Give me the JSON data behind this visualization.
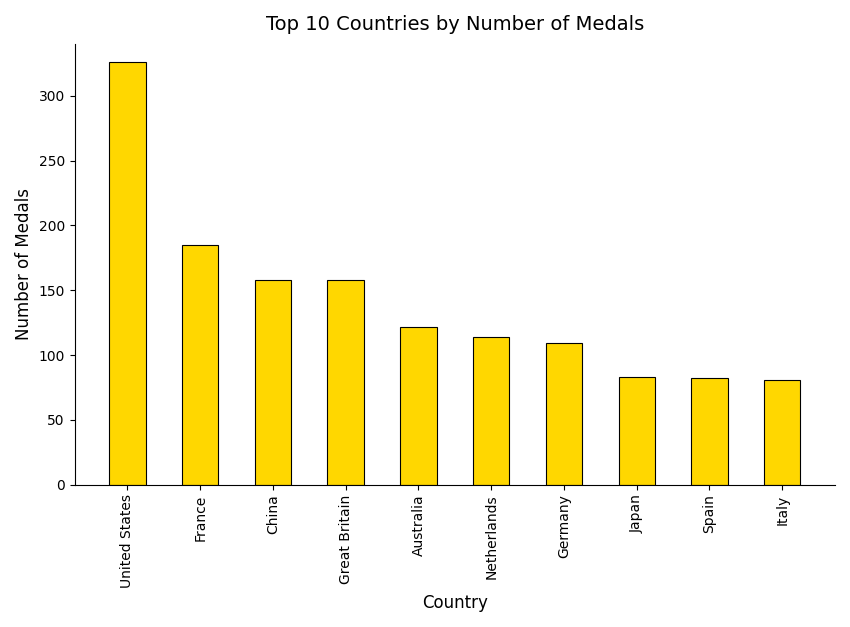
{
  "title": "Top 10 Countries by Number of Medals",
  "xlabel": "Country",
  "ylabel": "Number of Medals",
  "categories": [
    "United States",
    "France",
    "China",
    "Great Britain",
    "Australia",
    "Netherlands",
    "Germany",
    "Japan",
    "Spain",
    "Italy"
  ],
  "values": [
    326,
    185,
    158,
    158,
    122,
    114,
    109,
    83,
    82,
    81
  ],
  "bar_color": "#FFD700",
  "bar_edgecolor": "black",
  "bar_linewidth": 0.8,
  "bar_width": 0.5,
  "ylim": [
    0,
    340
  ],
  "yticks": [
    0,
    50,
    100,
    150,
    200,
    250,
    300
  ],
  "figsize": [
    8.5,
    6.27
  ],
  "dpi": 100,
  "title_fontsize": 14,
  "axis_label_fontsize": 12,
  "tick_fontsize": 10,
  "xtick_rotation": 90,
  "background_color": "#ffffff"
}
